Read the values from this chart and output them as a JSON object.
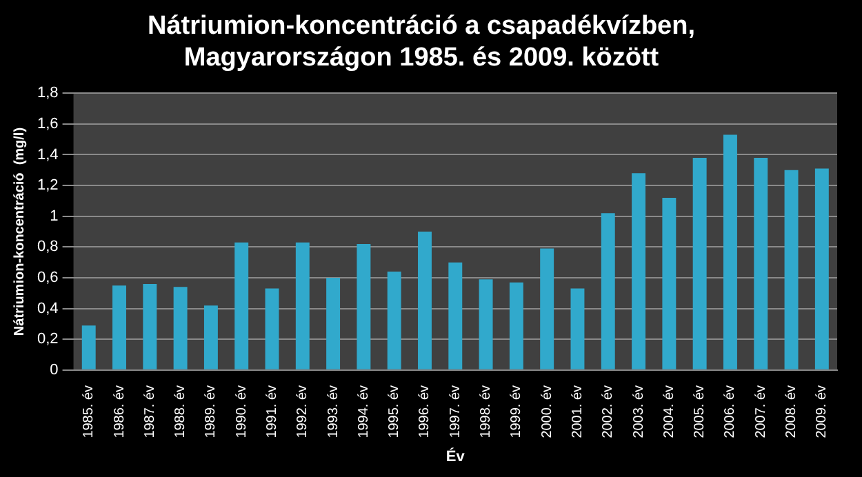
{
  "chart_data": {
    "type": "bar",
    "title": [
      "Nátriumion-koncentráció a csapadékvízben,",
      "Magyarországon 1985. és 2009. között"
    ],
    "xlabel": "Év",
    "ylabel": "Nátriumion-koncentráció  (mg/l)",
    "categories": [
      "1985. év",
      "1986. év",
      "1987. év",
      "1988. év",
      "1989. év",
      "1990. év",
      "1991. év",
      "1992. év",
      "1993. év",
      "1994. év",
      "1995. év",
      "1996. év",
      "1997. év",
      "1998. év",
      "1999. év",
      "2000. év",
      "2001. év",
      "2002. év",
      "2003. év",
      "2004. év",
      "2005. év",
      "2006. év",
      "2007. év",
      "2008. év",
      "2009. év"
    ],
    "values": [
      0.29,
      0.55,
      0.56,
      0.54,
      0.42,
      0.83,
      0.53,
      0.83,
      0.6,
      0.82,
      0.64,
      0.9,
      0.7,
      0.59,
      0.57,
      0.79,
      0.53,
      1.02,
      1.28,
      1.12,
      1.38,
      1.53,
      1.38,
      1.3,
      1.31
    ],
    "color": "#31a9cc",
    "ylim": [
      0,
      1.8
    ],
    "yticks": [
      {
        "value": 0,
        "label": "0"
      },
      {
        "value": 0.2,
        "label": "0,2"
      },
      {
        "value": 0.4,
        "label": "0,4"
      },
      {
        "value": 0.6,
        "label": "0,6"
      },
      {
        "value": 0.8,
        "label": "0,8"
      },
      {
        "value": 1,
        "label": "1"
      },
      {
        "value": 1.2,
        "label": "1,2"
      },
      {
        "value": 1.4,
        "label": "1,4"
      },
      {
        "value": 1.6,
        "label": "1,6"
      },
      {
        "value": 1.8,
        "label": "1,8"
      }
    ],
    "grid": "y"
  }
}
